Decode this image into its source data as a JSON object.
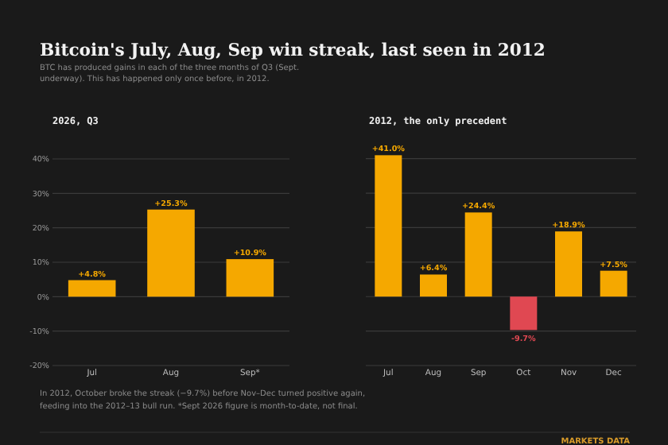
{
  "chart_data": [
    {
      "type": "other",
      "title": "Bitcoin's July, Aug, Sep win streak, last seen in 2012",
      "subtitle": "BTC has produced gains in each of the three months of Q3 (Sept. underway). This has happened only once before, in 2012.",
      "annotations": [
        "In 2012, October broke the streak (−9.7%) before Nov–Dec turned positive again, feeding into the 2012–13 bull run. *Sept 2026 figure is month-to-date, not final.",
        "MARKETS DATA"
      ]
    },
    {
      "type": "bar",
      "title": "2026, Q3",
      "categories": [
        "Jul",
        "Aug",
        "Sep*"
      ],
      "values": [
        4.8,
        25.3,
        10.9
      ],
      "value_labels": [
        "+4.8%",
        "+25.3%",
        "+10.9%"
      ],
      "colors": [
        "#f5a800",
        "#f5a800",
        "#f5a800"
      ],
      "ylim": [
        -20,
        40
      ],
      "yticks": [
        {
          "value": -20,
          "label": "-20%"
        },
        {
          "value": -10,
          "label": "-10%"
        },
        {
          "value": 0,
          "label": "0%"
        },
        {
          "value": 10,
          "label": "10%"
        },
        {
          "value": 20,
          "label": "20%"
        },
        {
          "value": 30,
          "label": "30%"
        },
        {
          "value": 40,
          "label": "40%"
        }
      ],
      "grid": "y"
    },
    {
      "type": "bar",
      "title": "2012, the only precedent",
      "categories": [
        "Jul",
        "Aug",
        "Sep",
        "Oct",
        "Nov",
        "Dec"
      ],
      "values": [
        41.0,
        6.4,
        24.4,
        -9.7,
        18.9,
        7.5
      ],
      "value_labels": [
        "+41.0%",
        "+6.4%",
        "+24.4%",
        "-9.7%",
        "+18.9%",
        "+7.5%"
      ],
      "colors": [
        "#f5a800",
        "#f5a800",
        "#f5a800",
        "#e04852",
        "#f5a800",
        "#f5a800"
      ],
      "ylim": [
        -20,
        42
      ],
      "yticks": [
        {
          "value": -20,
          "label": null
        },
        {
          "value": -10,
          "label": null
        },
        {
          "value": 0,
          "label": null
        },
        {
          "value": 10,
          "label": null
        },
        {
          "value": 20,
          "label": null
        },
        {
          "value": 30,
          "label": null
        },
        {
          "value": 40,
          "label": null
        }
      ],
      "grid": "y",
      "tick_labels": "x"
    }
  ]
}
